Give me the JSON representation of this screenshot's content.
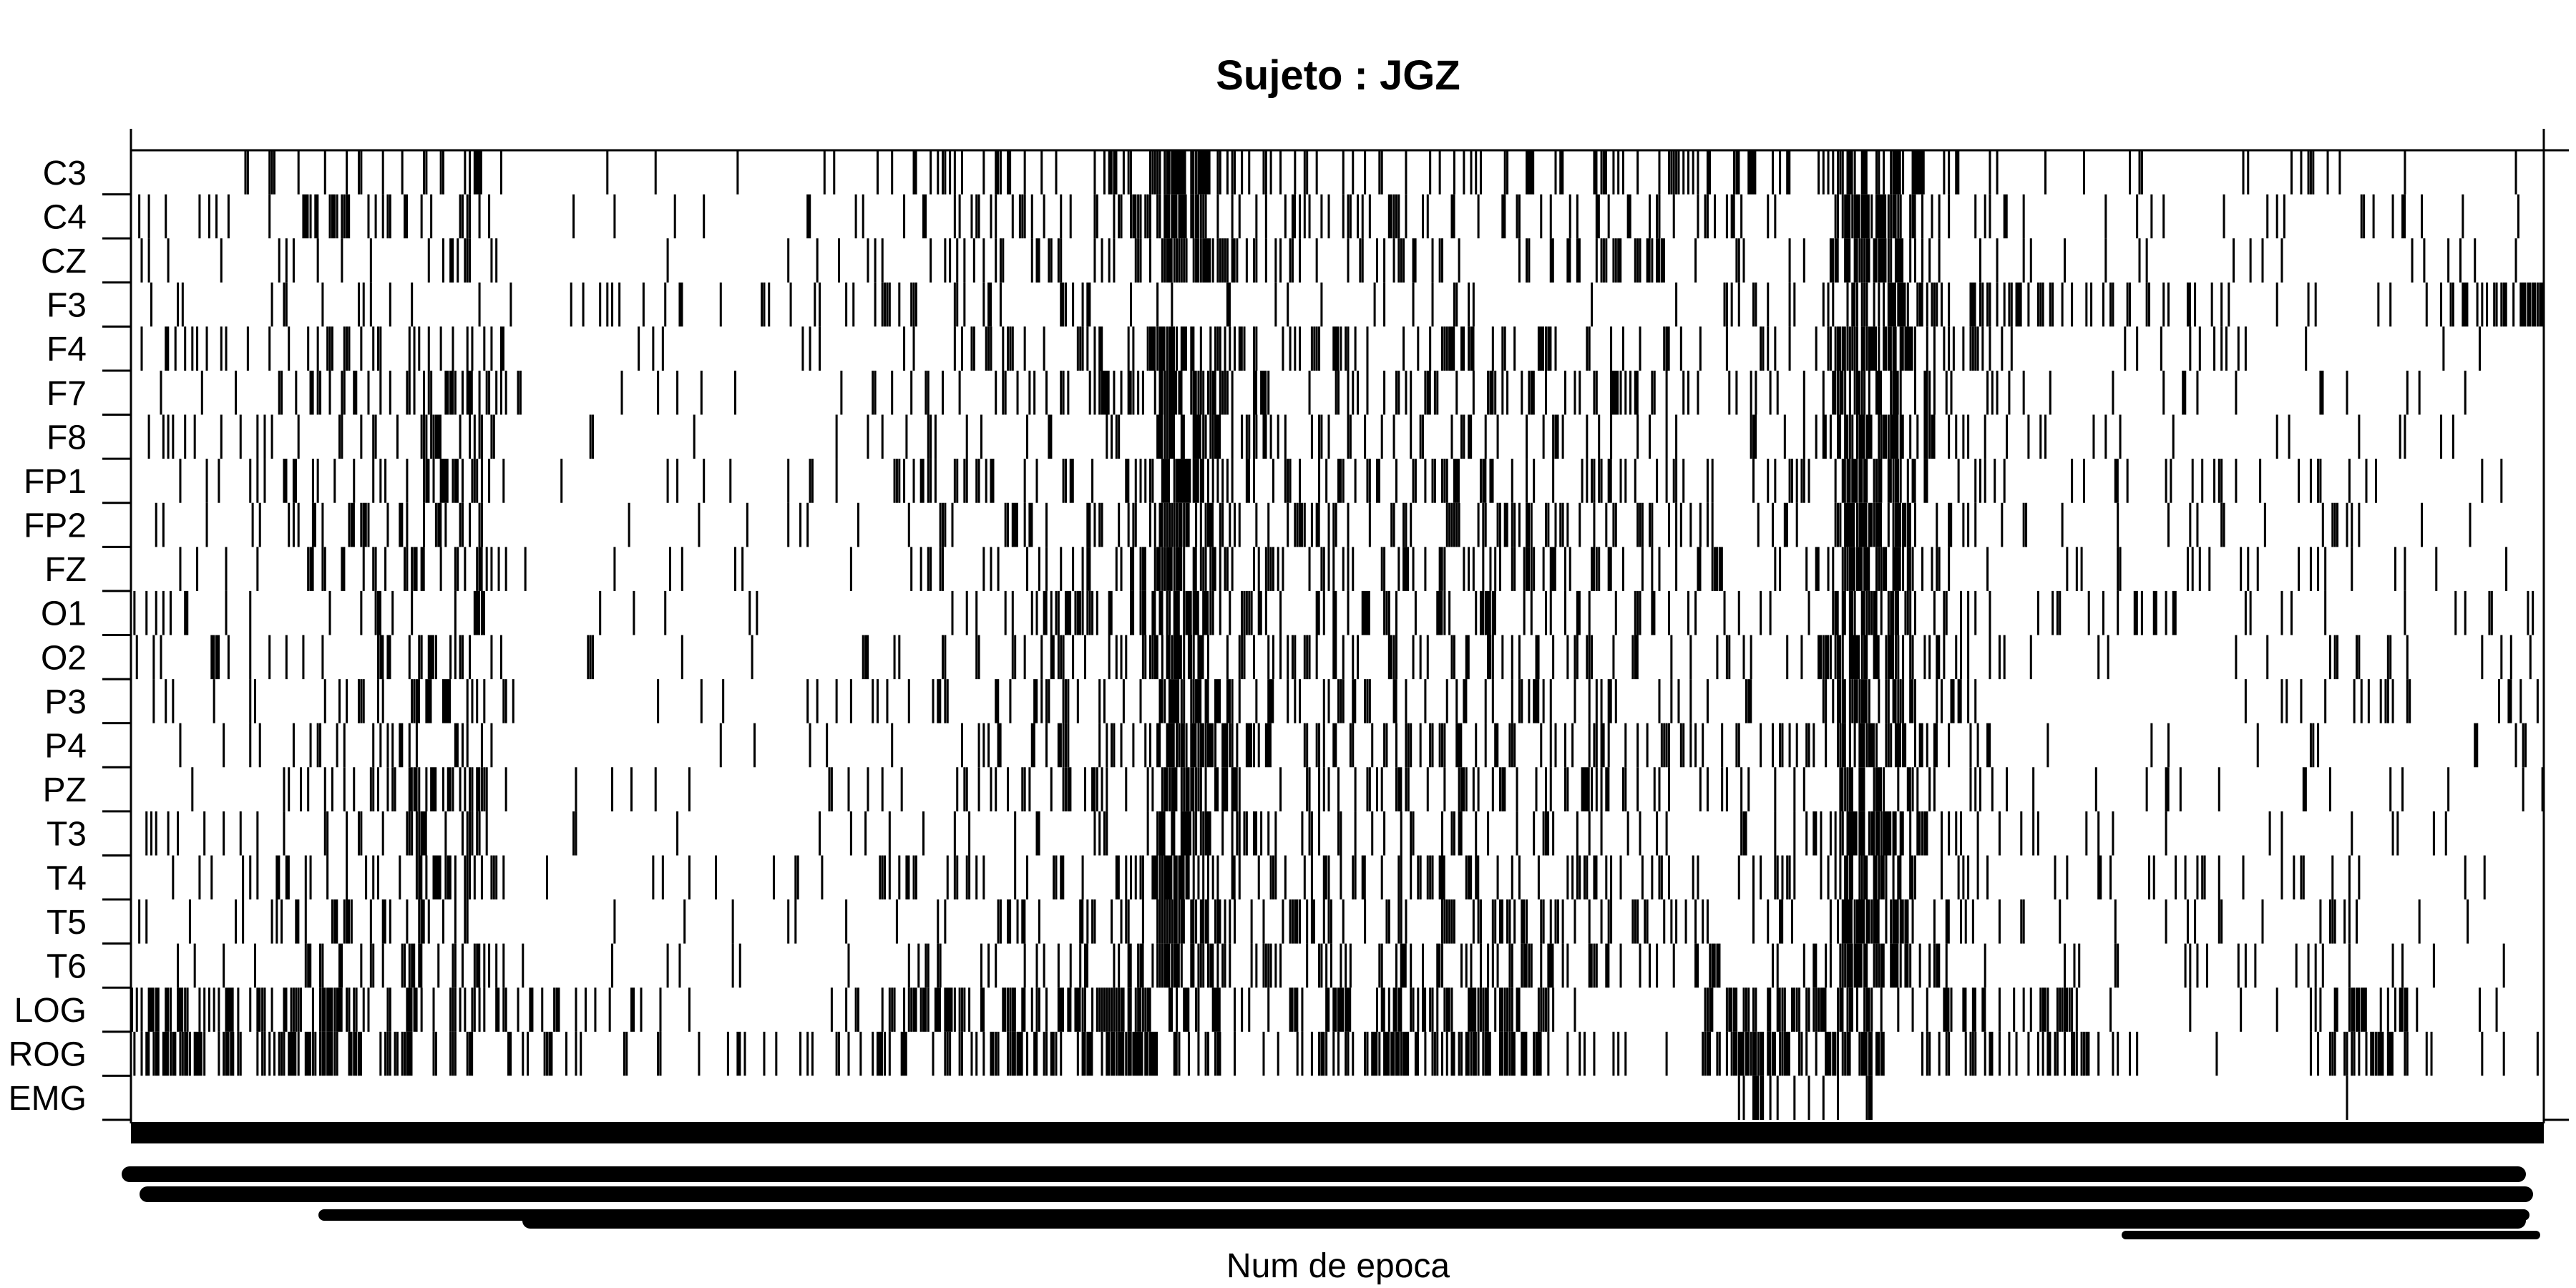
{
  "chart_data": {
    "type": "heatmap",
    "title": "Sujeto : JGZ",
    "xlabel": "Num de epoca",
    "ylabel": "",
    "rows": [
      "C3",
      "C4",
      "CZ",
      "F3",
      "F4",
      "F7",
      "F8",
      "FP1",
      "FP2",
      "FZ",
      "O1",
      "O2",
      "P3",
      "P4",
      "PZ",
      "T3",
      "T4",
      "T5",
      "T6",
      "LOG",
      "ROG",
      "EMG"
    ],
    "n_epochs": 1000,
    "colors": {
      "on": "#000000",
      "off": "#ffffff",
      "axis": "#000000"
    },
    "grid": false,
    "legend": "none",
    "density_profile": {
      "EEG": [
        [
          0,
          0.06
        ],
        [
          70,
          0.15
        ],
        [
          140,
          0.3
        ],
        [
          160,
          0.02
        ],
        [
          250,
          0.05
        ],
        [
          270,
          0.01
        ],
        [
          270,
          0.05
        ],
        [
          380,
          0.22
        ],
        [
          420,
          0.3
        ],
        [
          430,
          0.85
        ],
        [
          440,
          0.65
        ],
        [
          460,
          0.25
        ],
        [
          600,
          0.25
        ],
        [
          660,
          0.15
        ],
        [
          700,
          0.15
        ],
        [
          710,
          0.65
        ],
        [
          730,
          0.55
        ],
        [
          750,
          0.18
        ],
        [
          800,
          0.05
        ],
        [
          900,
          0.1
        ],
        [
          1000,
          0.05
        ]
      ],
      "F3": [
        [
          0,
          0.06
        ],
        [
          300,
          0.15
        ],
        [
          370,
          0.1
        ],
        [
          600,
          0.05
        ],
        [
          710,
          0.15
        ],
        [
          720,
          0.6
        ],
        [
          750,
          0.4
        ],
        [
          900,
          0.05
        ],
        [
          960,
          0.1
        ],
        [
          965,
          0.5
        ],
        [
          1000,
          0.6
        ]
      ],
      "EOG": [
        [
          0,
          0.45
        ],
        [
          70,
          0.55
        ],
        [
          100,
          0.4
        ],
        [
          240,
          0.05
        ],
        [
          370,
          0.5
        ],
        [
          420,
          0.6
        ],
        [
          470,
          0.1
        ],
        [
          500,
          0.45
        ],
        [
          580,
          0.55
        ],
        [
          600,
          0.05
        ],
        [
          650,
          0.05
        ],
        [
          651,
          0.55
        ],
        [
          720,
          0.6
        ],
        [
          730,
          0.05
        ],
        [
          800,
          0.45
        ],
        [
          830,
          0.05
        ],
        [
          900,
          0.05
        ],
        [
          930,
          0.5
        ],
        [
          950,
          0.05
        ],
        [
          1000,
          0.05
        ]
      ],
      "EMG": [
        [
          0,
          0.005
        ],
        [
          660,
          0.005
        ],
        [
          670,
          0.25
        ],
        [
          720,
          0.25
        ],
        [
          730,
          0.005
        ],
        [
          1000,
          0.005
        ]
      ]
    }
  }
}
